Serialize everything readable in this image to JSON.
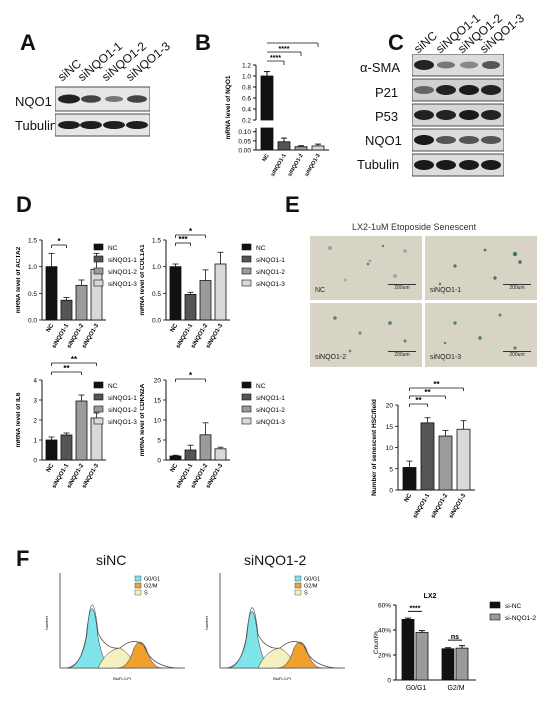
{
  "panels": {
    "A": "A",
    "B": "B",
    "C": "C",
    "D": "D",
    "E": "E",
    "F": "F"
  },
  "panelA": {
    "lanes": [
      "siNC",
      "siNQO1-1",
      "siNQO1-2",
      "siNQO1-3"
    ],
    "rows": [
      "NQO1",
      "Tubulin"
    ]
  },
  "panelC": {
    "lanes": [
      "siNC",
      "siNQO1-1",
      "siNQO1-2",
      "siNQO1-3"
    ],
    "rows": [
      "α-SMA",
      "P21",
      "P53",
      "NQO1",
      "Tubulin"
    ]
  },
  "panelE": {
    "title": "LX2-1uM Etoposide Senescent",
    "images": [
      {
        "label": "NC",
        "scale": "200um"
      },
      {
        "label": "siNQO1-1",
        "scale": "200um"
      },
      {
        "label": "siNQO1-2",
        "scale": "200um"
      },
      {
        "label": "siNQO1-3",
        "scale": "200um"
      }
    ]
  },
  "panelF": {
    "flow": [
      {
        "title": "siNC",
        "legend": [
          "G0/G1",
          "G2/M",
          "S"
        ],
        "xlabel": "BluFL3-PI",
        "ylabel": "Number"
      },
      {
        "title": "siNQO1-2",
        "legend": [
          "G0/G1",
          "G2/M",
          "S"
        ],
        "xlabel": "BluFL3-PI",
        "ylabel": "Number"
      }
    ]
  },
  "colors": {
    "black": "#111111",
    "dark": "#555555",
    "mid": "#9b9b9b",
    "light": "#d9d9d9",
    "g0g1": "#7fe3ea",
    "g2m": "#f0a030",
    "s": "#f4f0c0"
  },
  "chart_data": [
    {
      "id": "B",
      "type": "bar",
      "ylabel": "mRNA level of NQO1",
      "categories": [
        "NC",
        "siNQO1-1",
        "siNQO1-2",
        "siNQO1-3"
      ],
      "values": [
        1.0,
        0.045,
        0.018,
        0.022
      ],
      "errors": [
        0.08,
        0.02,
        0.005,
        0.01
      ],
      "ylim": [
        0,
        1.2
      ],
      "yticks_lower": [
        "0.00",
        "0.05",
        "0.10"
      ],
      "yticks_upper": [
        "0.2",
        "0.4",
        "0.6",
        "0.8",
        "1.0",
        "1.2"
      ],
      "sig": [
        "****",
        "****",
        "****"
      ]
    },
    {
      "id": "D1",
      "type": "bar",
      "ylabel": "mRNA level of ACTA2",
      "categories": [
        "NC",
        "siNQO1-1",
        "siNQO1-2",
        "siNQO1-3"
      ],
      "values": [
        1.0,
        0.37,
        0.65,
        0.95
      ],
      "errors": [
        0.25,
        0.05,
        0.1,
        0.3
      ],
      "ylim": [
        0,
        1.5
      ],
      "yticks": [
        "0.0",
        "0.5",
        "1.0",
        "1.5"
      ],
      "legend": [
        "NC",
        "siNQO1-1",
        "siNQO1-2",
        "siNQO1-3"
      ],
      "sig": [
        "*"
      ]
    },
    {
      "id": "D2",
      "type": "bar",
      "ylabel": "mRNA level of COL1A1",
      "categories": [
        "NC",
        "siNQO1-1",
        "siNQO1-2",
        "siNQO1-3"
      ],
      "values": [
        1.0,
        0.48,
        0.74,
        1.05
      ],
      "errors": [
        0.05,
        0.04,
        0.2,
        0.22
      ],
      "ylim": [
        0,
        1.5
      ],
      "yticks": [
        "0.0",
        "0.5",
        "1.0",
        "1.5"
      ],
      "legend": [
        "NC",
        "siNQO1-1",
        "siNQO1-2",
        "siNQO1-3"
      ],
      "sig": [
        "*",
        "***"
      ]
    },
    {
      "id": "D3",
      "type": "bar",
      "ylabel": "mRNA level of IL6",
      "categories": [
        "NC",
        "siNQO1-1",
        "siNQO1-2",
        "siNQO1-3"
      ],
      "values": [
        1.0,
        1.25,
        2.95,
        2.1
      ],
      "errors": [
        0.15,
        0.1,
        0.3,
        0.25
      ],
      "ylim": [
        0,
        4
      ],
      "yticks": [
        "0",
        "1",
        "2",
        "3",
        "4"
      ],
      "legend": [
        "NC",
        "siNQO1-1",
        "siNQO1-2",
        "siNQO1-3"
      ],
      "sig": [
        "**",
        "**"
      ]
    },
    {
      "id": "D4",
      "type": "bar",
      "ylabel": "mRNA level of CDKN2A",
      "categories": [
        "NC",
        "siNQO1-1",
        "siNQO1-2",
        "siNQO1-3"
      ],
      "values": [
        1.0,
        2.5,
        6.3,
        2.8
      ],
      "errors": [
        0.2,
        1.2,
        3.0,
        0.4
      ],
      "ylim": [
        0,
        20
      ],
      "yticks": [
        "0",
        "5",
        "10",
        "15",
        "20"
      ],
      "legend": [
        "NC",
        "siNQO1-1",
        "siNQO1-2",
        "siNQO1-3"
      ],
      "sig": [
        "*"
      ]
    },
    {
      "id": "E",
      "type": "bar",
      "ylabel": "Number of senescent HSC/field",
      "categories": [
        "NC",
        "siNQO1-1",
        "siNQO1-2",
        "siNQO1-3"
      ],
      "values": [
        5.3,
        15.8,
        12.7,
        14.3
      ],
      "errors": [
        1.5,
        1.2,
        1.3,
        2.0
      ],
      "ylim": [
        0,
        20
      ],
      "yticks": [
        "0",
        "5",
        "10",
        "15",
        "20"
      ],
      "sig": [
        "**",
        "**",
        "**"
      ]
    },
    {
      "id": "F",
      "type": "bar",
      "title": "LX2",
      "ylabel": "Count%",
      "categories": [
        "G0/G1",
        "G2/M"
      ],
      "series": [
        {
          "name": "si-NC",
          "values": [
            48.5,
            25.0
          ]
        },
        {
          "name": "si-NQO1-2",
          "values": [
            38.0,
            25.5
          ]
        }
      ],
      "errors": [
        [
          1.0,
          0.8
        ],
        [
          1.5,
          2.0
        ]
      ],
      "ylim": [
        0,
        60
      ],
      "yticks": [
        "0",
        "20%",
        "40%",
        "60%"
      ],
      "sig": [
        "****",
        "ns"
      ]
    }
  ]
}
